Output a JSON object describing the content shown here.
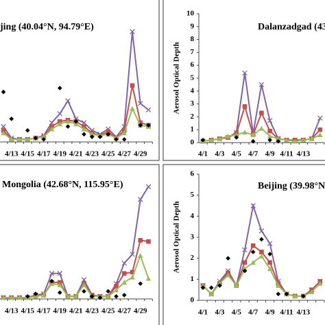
{
  "chart_data": [
    {
      "type": "line",
      "title": "jing (40.04°N, 94.79°E)",
      "categories": [
        null,
        "4/13",
        null,
        "4/15",
        null,
        "4/17",
        null,
        "4/19",
        null,
        "4/21",
        null,
        "4/23",
        null,
        "4/25",
        null,
        "4/27",
        null,
        "4/29",
        null
      ],
      "ylim": [
        0,
        10
      ],
      "series": [
        {
          "color": "#8064a2",
          "marker": "x",
          "values": [
            1.2,
            0.3,
            0.2,
            0.2,
            0.3,
            0.5,
            1.5,
            2.2,
            3.2,
            1.8,
            1.5,
            0.9,
            0.6,
            1.0,
            0.4,
            1.2,
            8.6,
            3.0,
            2.5
          ]
        },
        {
          "color": "#c0504d",
          "marker": "square",
          "values": [
            0.9,
            0.2,
            0.2,
            0.2,
            0.3,
            0.4,
            1.2,
            1.6,
            1.7,
            1.6,
            1.2,
            0.7,
            0.5,
            0.8,
            0.3,
            0.9,
            4.4,
            1.5,
            1.3
          ]
        },
        {
          "color": "#9bbb59",
          "marker": "triangle",
          "values": [
            0.7,
            0.2,
            0.2,
            0.2,
            0.3,
            0.4,
            1.0,
            1.4,
            1.6,
            1.4,
            1.0,
            0.6,
            0.5,
            0.6,
            0.3,
            0.7,
            2.6,
            1.3,
            1.2
          ]
        },
        {
          "color": "#000000",
          "marker": "diamond",
          "style": "markers",
          "values": [
            3.9,
            1.8,
            null,
            0.9,
            0.3,
            0.2,
            null,
            4.2,
            1.2,
            1.6,
            0.6,
            0.4,
            0.4,
            0.6,
            0.2,
            0.2,
            null,
            1.3,
            1.3
          ]
        }
      ]
    },
    {
      "type": "line",
      "title": "Dalanzadgad (43",
      "y_label": "Aerosol Optical Depth",
      "categories": [
        "4/1",
        null,
        "4/3",
        null,
        "4/5",
        null,
        "4/7",
        null,
        "4/9",
        null,
        "4/11",
        null,
        "4/13",
        null,
        null
      ],
      "ylim": [
        0,
        10
      ],
      "yticks": [
        0,
        1,
        2,
        3,
        4,
        5,
        6,
        7,
        8,
        9,
        10
      ],
      "series": [
        {
          "color": "#8064a2",
          "marker": "x",
          "values": [
            0.1,
            0.2,
            0.3,
            0.4,
            0.8,
            5.4,
            0.7,
            4.5,
            1.7,
            0.3,
            0.2,
            0.2,
            0.2,
            0.3,
            1.9
          ]
        },
        {
          "color": "#c0504d",
          "marker": "square",
          "values": [
            0.1,
            0.2,
            0.3,
            0.4,
            0.7,
            2.8,
            0.6,
            2.3,
            0.9,
            0.3,
            0.2,
            0.2,
            0.2,
            0.3,
            1.0
          ]
        },
        {
          "color": "#9bbb59",
          "marker": "triangle",
          "values": [
            0.1,
            0.2,
            0.3,
            0.5,
            0.6,
            0.8,
            0.6,
            1.1,
            0.5,
            0.3,
            0.2,
            0.1,
            0.2,
            0.3,
            0.6
          ]
        },
        {
          "color": "#000000",
          "marker": "diamond",
          "style": "markers",
          "values": [
            0.2,
            null,
            null,
            null,
            0.4,
            null,
            0.1,
            null,
            0.2,
            0.1,
            null,
            null,
            null,
            null,
            null
          ]
        }
      ]
    },
    {
      "type": "line",
      "title": "Mongolia (42.68°N, 115.95°E)",
      "categories": [
        null,
        "4/13",
        null,
        "4/15",
        null,
        "4/17",
        null,
        "4/19",
        null,
        "4/21",
        null,
        "4/23",
        null,
        "4/25",
        null,
        "4/27",
        null,
        "4/29",
        null
      ],
      "ylim": [
        0,
        10
      ],
      "series": [
        {
          "color": "#8064a2",
          "marker": "x",
          "values": [
            0.1,
            0.1,
            0.1,
            0.1,
            0.3,
            0.4,
            2.0,
            2.0,
            0.2,
            0.2,
            1.5,
            0.3,
            0.2,
            0.2,
            1.2,
            2.8,
            3.5,
            7.8,
            8.8
          ]
        },
        {
          "color": "#c0504d",
          "marker": "square",
          "values": [
            0.1,
            0.1,
            0.1,
            0.1,
            0.3,
            0.3,
            1.3,
            1.3,
            0.2,
            0.2,
            1.2,
            0.3,
            0.2,
            0.2,
            1.0,
            2.0,
            2.1,
            4.6,
            4.5
          ]
        },
        {
          "color": "#9bbb59",
          "marker": "triangle",
          "values": [
            0.1,
            0.1,
            0.1,
            0.1,
            0.2,
            0.3,
            1.2,
            1.1,
            0.2,
            0.2,
            1.1,
            0.2,
            0.2,
            0.2,
            0.7,
            1.3,
            1.7,
            3.4,
            1.6
          ]
        },
        {
          "color": "#000000",
          "marker": "diamond",
          "style": "markers",
          "values": [
            null,
            null,
            null,
            0.2,
            0.4,
            null,
            1.4,
            0.5,
            null,
            null,
            0.6,
            0.2,
            0.1,
            0.6,
            0.2,
            0.3,
            null,
            1.2,
            null
          ]
        }
      ]
    },
    {
      "type": "line",
      "title": "Beijing (39.98°N, 116",
      "y_label": "Aerosol Optical Depth",
      "categories": [
        "4/1",
        null,
        "4/3",
        null,
        "4/5",
        null,
        "4/7",
        null,
        "4/9",
        null,
        "4/11",
        null,
        "4/13",
        null,
        null
      ],
      "ylim": [
        0,
        6
      ],
      "yticks": [
        0,
        1,
        2,
        3,
        4,
        5,
        6
      ],
      "series": [
        {
          "color": "#8064a2",
          "marker": "x",
          "values": [
            0.7,
            0.3,
            0.9,
            1.4,
            0.7,
            2.4,
            4.5,
            3.3,
            2.7,
            0.9,
            0.3,
            0.2,
            0.2,
            0.5,
            0.9
          ]
        },
        {
          "color": "#c0504d",
          "marker": "square",
          "values": [
            0.7,
            0.3,
            0.8,
            1.3,
            0.7,
            1.8,
            2.6,
            2.3,
            1.8,
            0.8,
            0.3,
            0.2,
            0.2,
            0.5,
            0.9
          ]
        },
        {
          "color": "#9bbb59",
          "marker": "triangle",
          "values": [
            0.7,
            0.3,
            0.8,
            1.2,
            0.7,
            1.5,
            1.8,
            2.1,
            1.5,
            0.7,
            0.3,
            0.2,
            0.2,
            0.4,
            0.8
          ]
        },
        {
          "color": "#000000",
          "marker": "diamond",
          "style": "markers",
          "values": [
            0.6,
            0.6,
            0.7,
            2.0,
            null,
            1.4,
            2.3,
            2.9,
            2.2,
            0.3,
            0.3,
            null,
            0.2,
            null,
            null
          ]
        }
      ]
    }
  ]
}
